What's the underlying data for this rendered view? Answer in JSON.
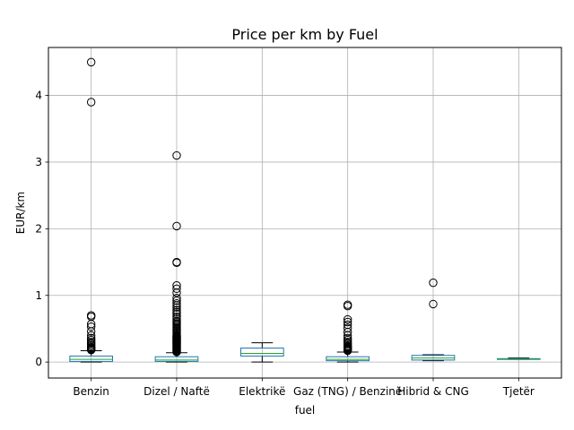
{
  "chart_data": {
    "type": "box",
    "title": "Price per km by Fuel",
    "xlabel": "fuel",
    "ylabel": "EUR/km",
    "ylim": [
      -0.24,
      4.72
    ],
    "yticks": [
      0,
      1,
      2,
      3,
      4
    ],
    "grid": true,
    "categories": [
      "Benzin",
      "Dizel / Naftë",
      "Elektrikë",
      "Gaz (TNG) / Benzinë",
      "Hibrid & CNG",
      "Tjetër"
    ],
    "boxes": [
      {
        "category": "Benzin",
        "whisker_low": 0.0,
        "q1": 0.01,
        "median": 0.04,
        "q3": 0.09,
        "whisker_high": 0.17,
        "outliers": [
          0.18,
          0.19,
          0.2,
          0.21,
          0.22,
          0.24,
          0.26,
          0.28,
          0.3,
          0.33,
          0.36,
          0.4,
          0.46,
          0.53,
          0.57,
          0.68,
          0.7,
          3.9,
          4.5
        ]
      },
      {
        "category": "Dizel / Naftë",
        "whisker_low": 0.0,
        "q1": 0.01,
        "median": 0.03,
        "q3": 0.08,
        "whisker_high": 0.14,
        "outliers": [
          0.15,
          0.16,
          0.17,
          0.18,
          0.19,
          0.2,
          0.21,
          0.22,
          0.23,
          0.24,
          0.25,
          0.26,
          0.27,
          0.28,
          0.29,
          0.3,
          0.31,
          0.32,
          0.33,
          0.34,
          0.35,
          0.36,
          0.37,
          0.38,
          0.39,
          0.4,
          0.42,
          0.44,
          0.46,
          0.48,
          0.5,
          0.52,
          0.54,
          0.56,
          0.58,
          0.6,
          0.62,
          0.65,
          0.68,
          0.72,
          0.75,
          0.78,
          0.82,
          0.85,
          0.88,
          0.92,
          0.96,
          1.04,
          1.1,
          1.15,
          1.49,
          1.5,
          2.04,
          3.1
        ]
      },
      {
        "category": "Elektrikë",
        "whisker_low": 0.0,
        "q1": 0.09,
        "median": 0.13,
        "q3": 0.21,
        "whisker_high": 0.29,
        "outliers": []
      },
      {
        "category": "Gaz (TNG) / Benzinë",
        "whisker_low": 0.0,
        "q1": 0.02,
        "median": 0.04,
        "q3": 0.08,
        "whisker_high": 0.15,
        "outliers": [
          0.17,
          0.18,
          0.19,
          0.2,
          0.21,
          0.22,
          0.23,
          0.24,
          0.26,
          0.28,
          0.3,
          0.33,
          0.36,
          0.4,
          0.45,
          0.51,
          0.56,
          0.6,
          0.64,
          0.84,
          0.86
        ]
      },
      {
        "category": "Hibrid & CNG",
        "whisker_low": 0.02,
        "q1": 0.03,
        "median": 0.06,
        "q3": 0.1,
        "whisker_high": 0.11,
        "outliers": [
          0.87,
          1.19
        ]
      },
      {
        "category": "Tjetër",
        "whisker_low": 0.04,
        "q1": 0.04,
        "median": 0.05,
        "q3": 0.05,
        "whisker_high": 0.06,
        "outliers": []
      }
    ],
    "colors": {
      "box": "#1f77b4",
      "median": "#2ca02c",
      "whisker": "#000000",
      "outlier_edge": "#000000",
      "grid": "#b0b0b0"
    }
  }
}
